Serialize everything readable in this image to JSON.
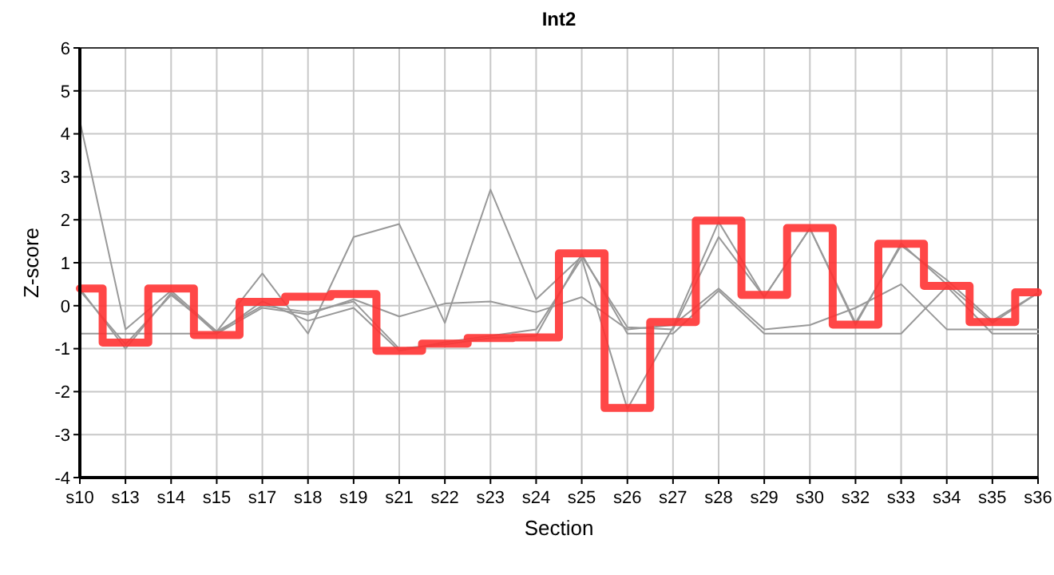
{
  "chart_data": {
    "type": "line",
    "title": "Int2",
    "xlabel": "Section",
    "ylabel": "Z-score",
    "categories": [
      "s10",
      "s13",
      "s14",
      "s15",
      "s17",
      "s18",
      "s19",
      "s21",
      "s22",
      "s23",
      "s24",
      "s25",
      "s26",
      "s27",
      "s28",
      "s29",
      "s30",
      "s32",
      "s33",
      "s34",
      "s35",
      "s36"
    ],
    "series": [
      {
        "color": "#999999",
        "values": [
          4.3,
          -0.55,
          0.35,
          -0.6,
          0.75,
          -0.65,
          1.6,
          1.9,
          -0.4,
          2.7,
          0.15,
          1.15,
          -0.5,
          -0.55,
          1.6,
          0.2,
          1.8,
          -0.4,
          1.4,
          0.6,
          -0.35,
          0.3
        ]
      },
      {
        "color": "#999999",
        "values": [
          -0.65,
          -0.65,
          -0.65,
          -0.65,
          -0.05,
          -0.2,
          0.15,
          -0.25,
          0.05,
          0.1,
          -0.15,
          0.2,
          -0.55,
          -0.45,
          0.4,
          -0.55,
          -0.45,
          -0.05,
          0.5,
          -0.55,
          -0.55,
          -0.55
        ]
      },
      {
        "color": "#999999",
        "values": [
          0.4,
          -1.0,
          0.3,
          -0.65,
          0.1,
          -0.35,
          -0.05,
          -1.05,
          -0.85,
          -0.7,
          -0.55,
          1.1,
          -2.4,
          -0.5,
          1.95,
          0.2,
          1.8,
          -0.45,
          1.45,
          0.5,
          -0.4,
          0.3
        ]
      },
      {
        "color": "#999999",
        "values": [
          0.35,
          -0.9,
          0.25,
          -0.6,
          0.0,
          -0.15,
          0.1,
          -1.0,
          -0.9,
          -0.75,
          -0.7,
          1.2,
          -0.65,
          -0.65,
          0.35,
          -0.65,
          -0.65,
          -0.65,
          -0.65,
          0.45,
          -0.65,
          -0.65
        ]
      },
      {
        "type": "step",
        "color": "#ff3333",
        "values": [
          0.4,
          -0.86,
          0.4,
          -0.68,
          0.09,
          0.21,
          0.27,
          -1.05,
          -0.88,
          -0.75,
          -0.74,
          1.22,
          -2.38,
          -0.38,
          1.98,
          0.25,
          1.81,
          -0.44,
          1.44,
          0.46,
          -0.38,
          0.31
        ]
      }
    ],
    "ylim": [
      -4,
      6
    ],
    "yticks": [
      -4,
      -3,
      -2,
      -1,
      0,
      1,
      2,
      3,
      4,
      5,
      6
    ],
    "grid": true,
    "marker": "none",
    "line_style": "solid"
  }
}
